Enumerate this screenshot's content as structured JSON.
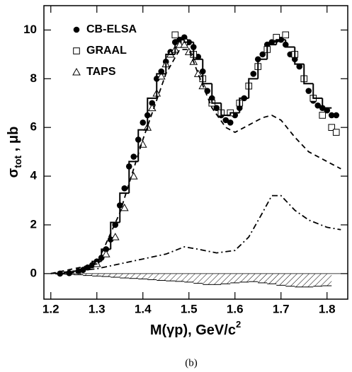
{
  "chart_data": {
    "type": "scatter",
    "caption": "(b)",
    "x_label": "M(γp), GeV/c",
    "x_label_sup": "2",
    "y_label": "σ",
    "y_label_sub": "tot",
    "y_label_rest": " , μb",
    "xlim": [
      1.185,
      1.845
    ],
    "ylim": [
      -1.05,
      11
    ],
    "xticks": [
      1.2,
      1.3,
      1.4,
      1.5,
      1.6,
      1.7,
      1.8
    ],
    "yticks": [
      0,
      2,
      4,
      6,
      8,
      10
    ],
    "legend": "upper left",
    "series": [
      {
        "name": "CB-ELSA",
        "mark": "circle",
        "color": "#000000",
        "x": [
          1.22,
          1.24,
          1.26,
          1.27,
          1.28,
          1.29,
          1.3,
          1.31,
          1.32,
          1.33,
          1.34,
          1.35,
          1.36,
          1.37,
          1.38,
          1.39,
          1.4,
          1.41,
          1.42,
          1.43,
          1.44,
          1.45,
          1.46,
          1.47,
          1.48,
          1.49,
          1.5,
          1.51,
          1.52,
          1.53,
          1.54,
          1.55,
          1.56,
          1.57,
          1.58,
          1.59,
          1.6,
          1.61,
          1.62,
          1.63,
          1.64,
          1.65,
          1.66,
          1.67,
          1.68,
          1.69,
          1.7,
          1.71,
          1.72,
          1.73,
          1.74,
          1.75,
          1.76,
          1.77,
          1.78,
          1.79,
          1.8,
          1.81,
          1.82
        ],
        "values": [
          0.0,
          0.02,
          0.1,
          0.15,
          0.25,
          0.35,
          0.5,
          0.65,
          1.0,
          1.4,
          2.0,
          2.8,
          3.5,
          4.4,
          4.8,
          5.5,
          6.2,
          6.5,
          7.0,
          8.0,
          8.3,
          8.7,
          9.1,
          9.5,
          9.6,
          9.7,
          9.5,
          9.3,
          8.9,
          8.3,
          7.5,
          7.2,
          6.8,
          6.5,
          6.3,
          6.2,
          6.5,
          6.8,
          7.2,
          7.7,
          8.2,
          8.8,
          9.0,
          9.4,
          9.5,
          9.6,
          9.6,
          9.4,
          9.0,
          8.8,
          8.5,
          8.0,
          7.5,
          7.1,
          6.9,
          6.8,
          6.7,
          6.5,
          6.5
        ]
      },
      {
        "name": "GRAAL",
        "mark": "square",
        "color": "#000000",
        "x": [
          1.47,
          1.49,
          1.51,
          1.53,
          1.55,
          1.57,
          1.59,
          1.61,
          1.63,
          1.65,
          1.67,
          1.69,
          1.71,
          1.73,
          1.75,
          1.77,
          1.79,
          1.81,
          1.82
        ],
        "values": [
          9.8,
          9.5,
          9.0,
          8.0,
          7.0,
          6.6,
          6.6,
          7.0,
          7.7,
          8.5,
          9.2,
          9.7,
          9.8,
          9.0,
          8.0,
          7.2,
          6.5,
          6.0,
          5.8
        ]
      },
      {
        "name": "TAPS",
        "mark": "triangle",
        "color": "#000000",
        "x": [
          1.3,
          1.32,
          1.34,
          1.36,
          1.38,
          1.4,
          1.41,
          1.42,
          1.43,
          1.44,
          1.45,
          1.46,
          1.47,
          1.48,
          1.49,
          1.5,
          1.51,
          1.52,
          1.53
        ],
        "values": [
          0.4,
          0.8,
          1.5,
          2.7,
          4.0,
          5.3,
          6.0,
          6.8,
          7.4,
          8.1,
          8.6,
          9.0,
          9.2,
          9.4,
          9.4,
          9.1,
          8.7,
          8.2,
          7.7
        ]
      },
      {
        "mark": "step",
        "color": "#000000",
        "bins": [
          1.21,
          1.23,
          1.25,
          1.27,
          1.29,
          1.31,
          1.33,
          1.35,
          1.37,
          1.39,
          1.41,
          1.43,
          1.45,
          1.47,
          1.49,
          1.51,
          1.53,
          1.55,
          1.57,
          1.59,
          1.61,
          1.63,
          1.65,
          1.67,
          1.69,
          1.71,
          1.73,
          1.75,
          1.77,
          1.79,
          1.81
        ],
        "values": [
          0.0,
          0.05,
          0.1,
          0.25,
          0.5,
          1.0,
          2.1,
          3.3,
          4.6,
          5.9,
          7.2,
          8.2,
          9.0,
          9.6,
          9.5,
          8.8,
          7.8,
          7.0,
          6.5,
          6.6,
          7.2,
          8.0,
          8.8,
          9.4,
          9.6,
          9.3,
          8.6,
          7.8,
          7.2,
          6.8
        ]
      },
      {
        "mark": "dashed",
        "color": "#000000",
        "x": [
          1.2,
          1.3,
          1.35,
          1.4,
          1.45,
          1.48,
          1.5,
          1.52,
          1.55,
          1.58,
          1.6,
          1.63,
          1.66,
          1.68,
          1.7,
          1.73,
          1.76,
          1.8,
          1.83
        ],
        "values": [
          0,
          0.4,
          2.5,
          5.5,
          8.2,
          9.2,
          9.2,
          8.2,
          6.8,
          6.0,
          5.8,
          6.1,
          6.4,
          6.5,
          6.3,
          5.6,
          5.0,
          4.6,
          4.3
        ]
      },
      {
        "mark": "dash-dot",
        "color": "#000000",
        "x": [
          1.2,
          1.3,
          1.4,
          1.45,
          1.49,
          1.52,
          1.56,
          1.6,
          1.63,
          1.66,
          1.68,
          1.7,
          1.73,
          1.76,
          1.8,
          1.83
        ],
        "values": [
          0,
          0.2,
          0.6,
          0.8,
          1.1,
          1.0,
          0.85,
          0.95,
          1.5,
          2.5,
          3.2,
          3.2,
          2.6,
          2.2,
          1.9,
          1.8
        ]
      },
      {
        "mark": "hatched-step",
        "color": "#000000",
        "bins": [
          1.21,
          1.23,
          1.25,
          1.27,
          1.29,
          1.31,
          1.33,
          1.35,
          1.37,
          1.39,
          1.41,
          1.43,
          1.45,
          1.47,
          1.49,
          1.51,
          1.53,
          1.55,
          1.57,
          1.59,
          1.61,
          1.63,
          1.65,
          1.67,
          1.69,
          1.71,
          1.73,
          1.75,
          1.77,
          1.79,
          1.81
        ],
        "values": [
          -0.02,
          -0.03,
          -0.05,
          -0.08,
          -0.1,
          -0.12,
          -0.15,
          -0.18,
          -0.2,
          -0.22,
          -0.25,
          -0.28,
          -0.3,
          -0.32,
          -0.35,
          -0.4,
          -0.45,
          -0.45,
          -0.42,
          -0.38,
          -0.35,
          -0.33,
          -0.38,
          -0.42,
          -0.48,
          -0.52,
          -0.55,
          -0.55,
          -0.52,
          -0.5
        ]
      }
    ]
  }
}
